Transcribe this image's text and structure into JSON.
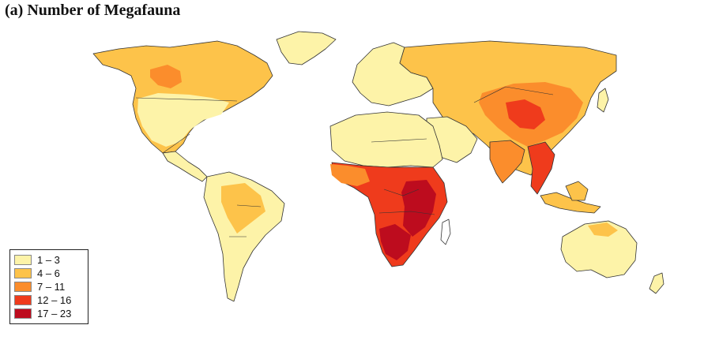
{
  "title": "(a) Number of Megafauna",
  "legend": [
    {
      "label": "1 – 3",
      "color": "#fdf3a8"
    },
    {
      "label": "4 – 6",
      "color": "#fdc34a"
    },
    {
      "label": "7 – 11",
      "color": "#fb8d2c"
    },
    {
      "label": "12 – 16",
      "color": "#ef3b1c"
    },
    {
      "label": "17 – 23",
      "color": "#bd0c1e"
    }
  ],
  "colors": {
    "ocean": "#ffffff",
    "border": "#222222"
  }
}
